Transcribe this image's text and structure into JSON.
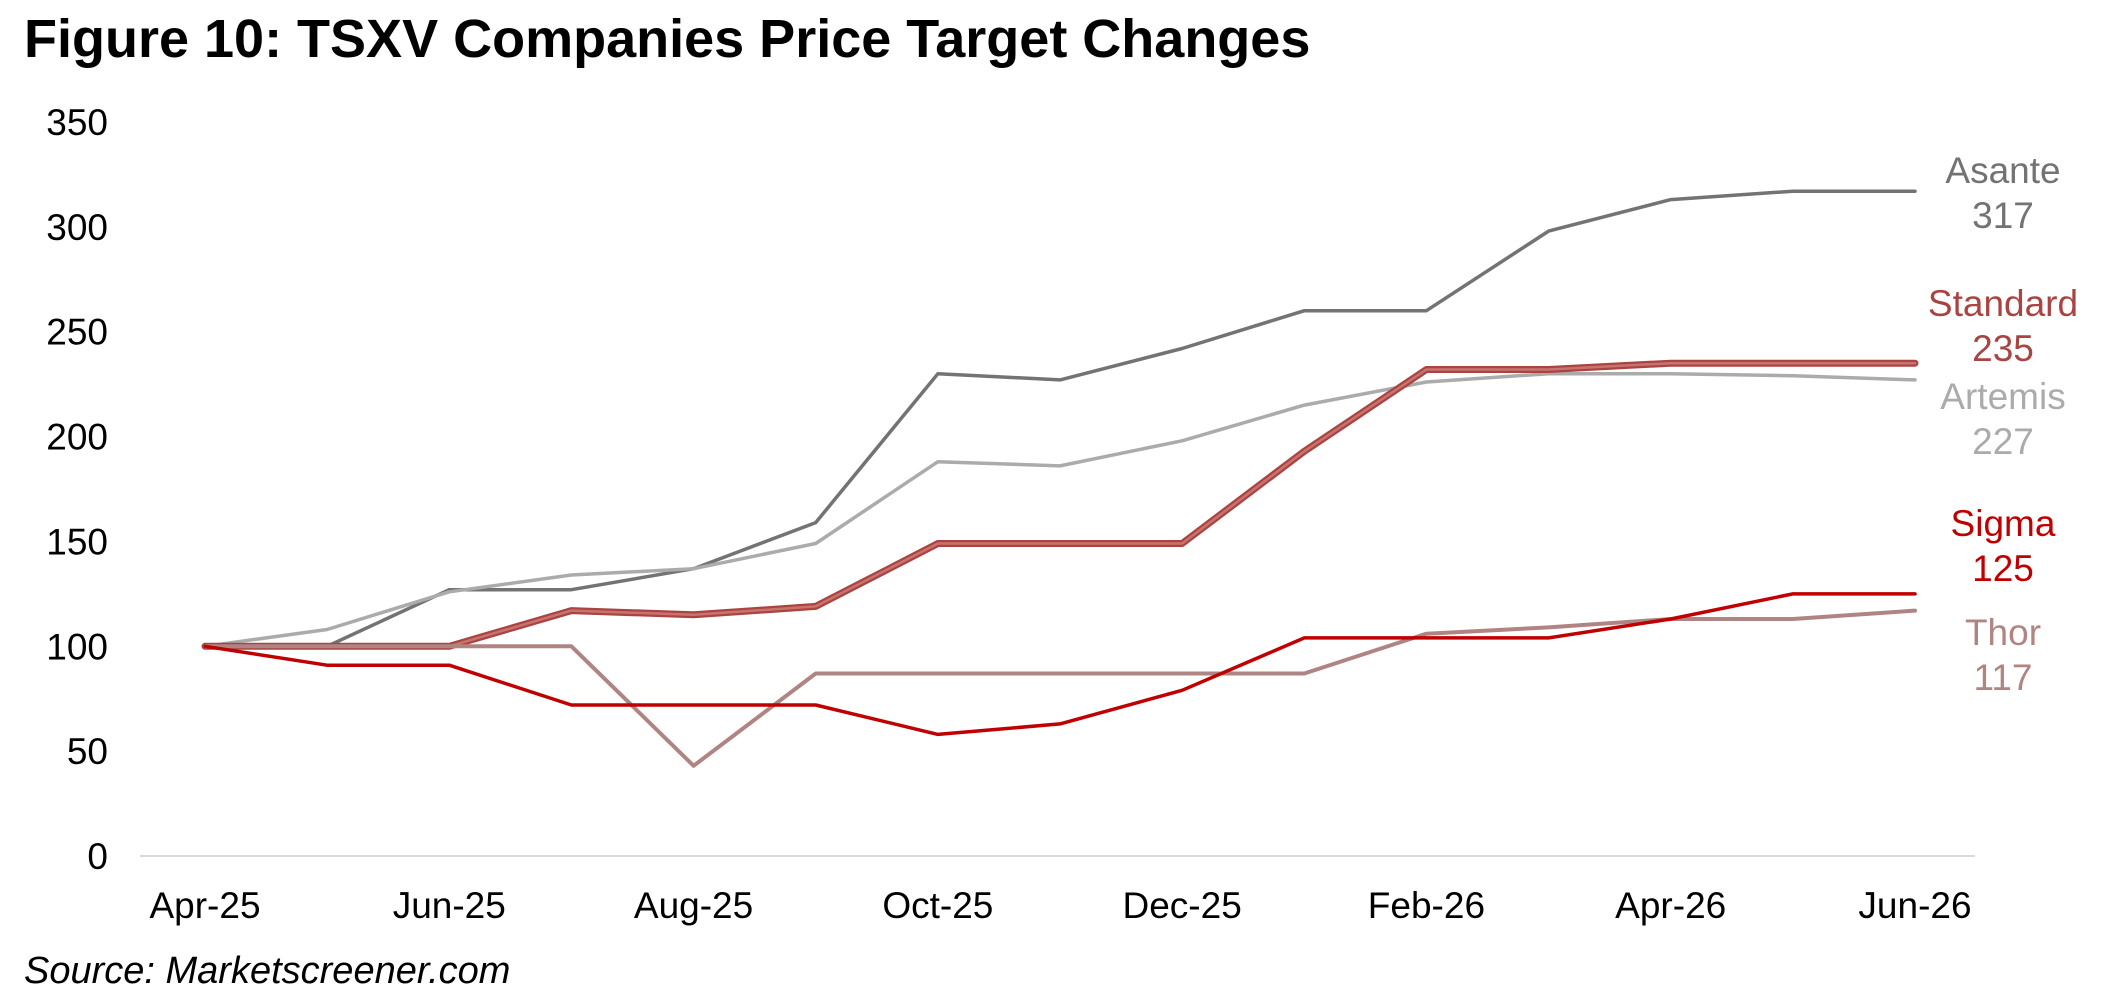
{
  "title": "Figure 10: TSXV Companies Price Target Changes",
  "source": "Source: Marketscreener.com",
  "chart_data": {
    "type": "line",
    "title": "Figure 10: TSXV Companies Price Target Changes",
    "xlabel": "",
    "ylabel": "",
    "ylim": [
      0,
      350
    ],
    "yticks": [
      0,
      50,
      100,
      150,
      200,
      250,
      300,
      350
    ],
    "grid": false,
    "legend": "end-labels",
    "x": [
      "Apr-25",
      "May-25",
      "Jun-25",
      "Jul-25",
      "Aug-25",
      "Sep-25",
      "Oct-25",
      "Nov-25",
      "Dec-25",
      "Jan-26",
      "Feb-26",
      "Mar-26",
      "Apr-26",
      "May-26",
      "Jun-26"
    ],
    "xtick_labels": [
      "Apr-25",
      "Jun-25",
      "Aug-25",
      "Oct-25",
      "Dec-25",
      "Feb-26",
      "Apr-26",
      "Jun-26"
    ],
    "series": [
      {
        "name": "Asante",
        "color": "#737373",
        "end_value_label": "317",
        "values": [
          100,
          100,
          127,
          127,
          137,
          159,
          230,
          227,
          242,
          260,
          260,
          298,
          313,
          317,
          317
        ]
      },
      {
        "name": "Artemis",
        "color": "#ababab",
        "end_value_label": "227",
        "values": [
          100,
          108,
          126,
          134,
          137,
          149,
          188,
          186,
          198,
          215,
          226,
          230,
          230,
          229,
          227
        ]
      },
      {
        "name": "Standard",
        "color": "#a94442",
        "end_value_label": "235",
        "values": [
          100,
          100,
          100,
          117,
          115,
          119,
          149,
          149,
          149,
          193,
          232,
          232,
          235,
          235,
          235
        ]
      },
      {
        "name": "Thor",
        "color": "#b08482",
        "end_value_label": "117",
        "values": [
          100,
          100,
          100,
          100,
          43,
          87,
          87,
          87,
          87,
          87,
          106,
          109,
          113,
          113,
          117
        ]
      },
      {
        "name": "Sigma",
        "color": "#c00000",
        "end_value_label": "125",
        "values": [
          100,
          91,
          91,
          72,
          72,
          72,
          58,
          63,
          79,
          104,
          104,
          104,
          113,
          125,
          125
        ]
      }
    ]
  }
}
